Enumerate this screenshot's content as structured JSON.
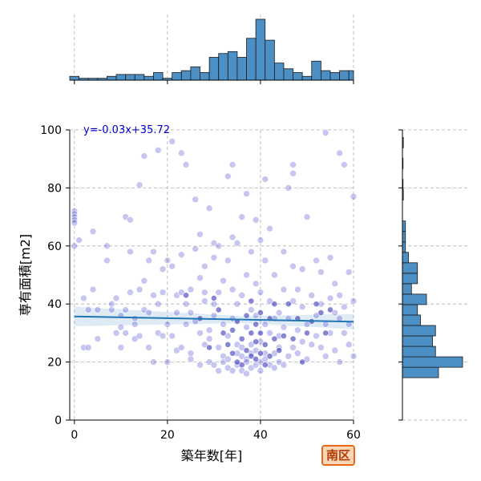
{
  "badge": {
    "label": "南区"
  },
  "chart_data": {
    "type": "scatter",
    "xlabel": "築年数[年]",
    "ylabel": "専有面積[m2]",
    "xlim": [
      -1,
      60
    ],
    "ylim": [
      0,
      100
    ],
    "xticks": [
      0,
      20,
      40,
      60
    ],
    "yticks": [
      0,
      20,
      40,
      60,
      80,
      100
    ],
    "grid": true,
    "regression": {
      "label": "y=-0.03x+35.72",
      "slope": -0.03,
      "intercept": 35.72,
      "color": "#1f77b4",
      "label_color": "#0000cc"
    },
    "point_color": "#3333cc",
    "bar_color": "#4c8fc4",
    "x_histogram": {
      "bin_width": 2,
      "bins": [
        {
          "x0": -1,
          "count": 2
        },
        {
          "x0": 1,
          "count": 1
        },
        {
          "x0": 3,
          "count": 1
        },
        {
          "x0": 5,
          "count": 1
        },
        {
          "x0": 7,
          "count": 2
        },
        {
          "x0": 9,
          "count": 3
        },
        {
          "x0": 11,
          "count": 3
        },
        {
          "x0": 13,
          "count": 3
        },
        {
          "x0": 15,
          "count": 2
        },
        {
          "x0": 17,
          "count": 4
        },
        {
          "x0": 19,
          "count": 1
        },
        {
          "x0": 21,
          "count": 4
        },
        {
          "x0": 23,
          "count": 5
        },
        {
          "x0": 25,
          "count": 7
        },
        {
          "x0": 27,
          "count": 4
        },
        {
          "x0": 29,
          "count": 12
        },
        {
          "x0": 31,
          "count": 14
        },
        {
          "x0": 33,
          "count": 15
        },
        {
          "x0": 35,
          "count": 12
        },
        {
          "x0": 37,
          "count": 22
        },
        {
          "x0": 39,
          "count": 32
        },
        {
          "x0": 41,
          "count": 21
        },
        {
          "x0": 43,
          "count": 9
        },
        {
          "x0": 45,
          "count": 6
        },
        {
          "x0": 47,
          "count": 4
        },
        {
          "x0": 49,
          "count": 2
        },
        {
          "x0": 51,
          "count": 10
        },
        {
          "x0": 53,
          "count": 5
        },
        {
          "x0": 55,
          "count": 4
        },
        {
          "x0": 57,
          "count": 5
        },
        {
          "x0": 59,
          "count": 5
        }
      ]
    },
    "y_histogram": {
      "bin_width": 3.6,
      "bins": [
        {
          "y0": 14.6,
          "count": 12
        },
        {
          "y0": 18.2,
          "count": 20
        },
        {
          "y0": 21.8,
          "count": 11
        },
        {
          "y0": 25.4,
          "count": 10
        },
        {
          "y0": 29.0,
          "count": 11
        },
        {
          "y0": 32.6,
          "count": 6
        },
        {
          "y0": 36.2,
          "count": 5
        },
        {
          "y0": 39.8,
          "count": 8
        },
        {
          "y0": 43.4,
          "count": 3
        },
        {
          "y0": 47.0,
          "count": 5
        },
        {
          "y0": 50.6,
          "count": 5
        },
        {
          "y0": 54.2,
          "count": 2
        },
        {
          "y0": 57.8,
          "count": 1
        },
        {
          "y0": 61.4,
          "count": 1
        },
        {
          "y0": 65.0,
          "count": 1
        },
        {
          "y0": 68.6,
          "count": 0
        },
        {
          "y0": 72.2,
          "count": 0
        },
        {
          "y0": 75.8,
          "count": 0.3
        },
        {
          "y0": 79.4,
          "count": 0.2
        },
        {
          "y0": 83.0,
          "count": 0
        },
        {
          "y0": 86.6,
          "count": 0.2
        },
        {
          "y0": 90.2,
          "count": 0
        },
        {
          "y0": 93.8,
          "count": 0.3
        }
      ]
    },
    "points": [
      [
        0,
        72
      ],
      [
        0,
        71
      ],
      [
        0,
        70
      ],
      [
        0,
        69
      ],
      [
        0,
        68
      ],
      [
        0,
        60
      ],
      [
        1,
        62
      ],
      [
        2,
        42
      ],
      [
        2,
        25
      ],
      [
        3,
        25
      ],
      [
        3,
        38
      ],
      [
        4,
        45
      ],
      [
        4,
        65
      ],
      [
        5,
        38
      ],
      [
        5,
        28
      ],
      [
        7,
        60
      ],
      [
        7,
        55
      ],
      [
        8,
        40
      ],
      [
        8,
        38
      ],
      [
        9,
        42
      ],
      [
        9,
        30
      ],
      [
        10,
        32
      ],
      [
        10,
        25
      ],
      [
        10,
        36
      ],
      [
        11,
        30
      ],
      [
        11,
        70
      ],
      [
        11,
        38
      ],
      [
        12,
        69
      ],
      [
        12,
        58
      ],
      [
        12,
        44
      ],
      [
        13,
        35
      ],
      [
        13,
        33
      ],
      [
        13,
        28
      ],
      [
        14,
        81
      ],
      [
        14,
        45
      ],
      [
        14,
        29
      ],
      [
        15,
        48
      ],
      [
        15,
        38
      ],
      [
        15,
        91
      ],
      [
        16,
        37
      ],
      [
        16,
        25
      ],
      [
        16,
        55
      ],
      [
        17,
        20
      ],
      [
        17,
        43
      ],
      [
        17,
        58
      ],
      [
        18,
        93
      ],
      [
        18,
        40
      ],
      [
        18,
        30
      ],
      [
        19,
        44
      ],
      [
        19,
        29
      ],
      [
        19,
        52
      ],
      [
        20,
        20
      ],
      [
        20,
        55
      ],
      [
        20,
        33
      ],
      [
        21,
        96
      ],
      [
        21,
        53
      ],
      [
        21,
        29
      ],
      [
        22,
        37
      ],
      [
        22,
        24
      ],
      [
        22,
        43
      ],
      [
        23,
        92
      ],
      [
        23,
        25
      ],
      [
        23,
        44
      ],
      [
        23,
        57
      ],
      [
        24,
        33
      ],
      [
        24,
        40
      ],
      [
        24,
        88
      ],
      [
        25,
        45
      ],
      [
        25,
        37
      ],
      [
        25,
        21
      ],
      [
        25,
        23
      ],
      [
        26,
        76
      ],
      [
        26,
        34
      ],
      [
        26,
        59
      ],
      [
        27,
        30
      ],
      [
        27,
        19
      ],
      [
        27,
        64
      ],
      [
        27,
        49
      ],
      [
        28,
        26
      ],
      [
        28,
        44
      ],
      [
        28,
        41
      ],
      [
        28,
        53
      ],
      [
        29,
        20
      ],
      [
        29,
        31
      ],
      [
        29,
        28
      ],
      [
        29,
        73
      ],
      [
        30,
        36
      ],
      [
        30,
        56
      ],
      [
        30,
        19
      ],
      [
        30,
        40
      ],
      [
        30,
        61
      ],
      [
        31,
        17
      ],
      [
        31,
        25
      ],
      [
        31,
        44
      ],
      [
        31,
        60
      ],
      [
        32,
        33
      ],
      [
        32,
        22
      ],
      [
        32,
        20
      ],
      [
        32,
        48
      ],
      [
        33,
        21
      ],
      [
        33,
        29
      ],
      [
        33,
        84
      ],
      [
        33,
        55
      ],
      [
        33,
        18
      ],
      [
        34,
        88
      ],
      [
        34,
        35
      ],
      [
        34,
        45
      ],
      [
        34,
        17
      ],
      [
        34,
        63
      ],
      [
        35,
        26
      ],
      [
        35,
        23
      ],
      [
        35,
        19
      ],
      [
        35,
        61
      ],
      [
        35,
        40
      ],
      [
        36,
        22
      ],
      [
        36,
        70
      ],
      [
        36,
        25
      ],
      [
        36,
        17
      ],
      [
        36,
        43
      ],
      [
        37,
        16
      ],
      [
        37,
        32
      ],
      [
        37,
        21
      ],
      [
        37,
        50
      ],
      [
        37,
        78
      ],
      [
        37,
        20
      ],
      [
        38,
        18
      ],
      [
        38,
        26
      ],
      [
        38,
        58
      ],
      [
        38,
        23
      ],
      [
        38,
        38
      ],
      [
        39,
        19
      ],
      [
        39,
        24
      ],
      [
        39,
        36
      ],
      [
        39,
        47
      ],
      [
        39,
        69
      ],
      [
        40,
        17
      ],
      [
        40,
        20
      ],
      [
        40,
        27
      ],
      [
        40,
        44
      ],
      [
        40,
        62
      ],
      [
        41,
        83
      ],
      [
        41,
        23
      ],
      [
        41,
        33
      ],
      [
        41,
        55
      ],
      [
        41,
        21
      ],
      [
        42,
        19
      ],
      [
        42,
        30
      ],
      [
        42,
        41
      ],
      [
        42,
        66
      ],
      [
        43,
        18
      ],
      [
        43,
        23
      ],
      [
        43,
        35
      ],
      [
        43,
        50
      ],
      [
        44,
        25
      ],
      [
        44,
        37
      ],
      [
        44,
        20
      ],
      [
        44,
        29
      ],
      [
        45,
        32
      ],
      [
        45,
        58
      ],
      [
        45,
        19
      ],
      [
        45,
        45
      ],
      [
        46,
        22
      ],
      [
        46,
        35
      ],
      [
        46,
        80
      ],
      [
        47,
        85
      ],
      [
        47,
        25
      ],
      [
        47,
        88
      ],
      [
        47,
        41
      ],
      [
        47,
        53
      ],
      [
        48,
        31
      ],
      [
        48,
        23
      ],
      [
        48,
        45
      ],
      [
        49,
        27
      ],
      [
        49,
        39
      ],
      [
        49,
        52
      ],
      [
        50,
        33
      ],
      [
        50,
        21
      ],
      [
        50,
        70
      ],
      [
        51,
        43
      ],
      [
        51,
        26
      ],
      [
        52,
        55
      ],
      [
        52,
        29
      ],
      [
        52,
        36
      ],
      [
        53,
        40
      ],
      [
        53,
        25
      ],
      [
        53,
        51
      ],
      [
        54,
        99
      ],
      [
        54,
        33
      ],
      [
        54,
        22
      ],
      [
        55,
        42
      ],
      [
        55,
        30
      ],
      [
        55,
        56
      ],
      [
        56,
        37
      ],
      [
        56,
        24
      ],
      [
        56,
        47
      ],
      [
        57,
        92
      ],
      [
        57,
        35
      ],
      [
        57,
        20
      ],
      [
        57,
        43
      ],
      [
        58,
        88
      ],
      [
        58,
        30
      ],
      [
        58,
        39
      ],
      [
        59,
        33
      ],
      [
        59,
        51
      ],
      [
        59,
        26
      ],
      [
        60,
        77
      ],
      [
        60,
        22
      ],
      [
        60,
        41
      ]
    ],
    "dark_points": [
      [
        30,
        42
      ],
      [
        31,
        38
      ],
      [
        32,
        30
      ],
      [
        33,
        26
      ],
      [
        34,
        23
      ],
      [
        34,
        31
      ],
      [
        35,
        20
      ],
      [
        35,
        34
      ],
      [
        36,
        28
      ],
      [
        36,
        19
      ],
      [
        37,
        24
      ],
      [
        37,
        36
      ],
      [
        38,
        22
      ],
      [
        38,
        30
      ],
      [
        38,
        41
      ],
      [
        39,
        21
      ],
      [
        39,
        27
      ],
      [
        39,
        33
      ],
      [
        40,
        23
      ],
      [
        40,
        30
      ],
      [
        40,
        37
      ],
      [
        41,
        19
      ],
      [
        41,
        26
      ],
      [
        42,
        22
      ],
      [
        42,
        35
      ],
      [
        43,
        28
      ],
      [
        43,
        40
      ],
      [
        44,
        24
      ],
      [
        45,
        29
      ],
      [
        46,
        40
      ],
      [
        47,
        28
      ],
      [
        48,
        35
      ],
      [
        49,
        20
      ],
      [
        50,
        30
      ],
      [
        51,
        34
      ],
      [
        52,
        40
      ],
      [
        53,
        37
      ],
      [
        54,
        30
      ],
      [
        55,
        38
      ],
      [
        24,
        43
      ],
      [
        27,
        35
      ],
      [
        29,
        25
      ]
    ]
  }
}
